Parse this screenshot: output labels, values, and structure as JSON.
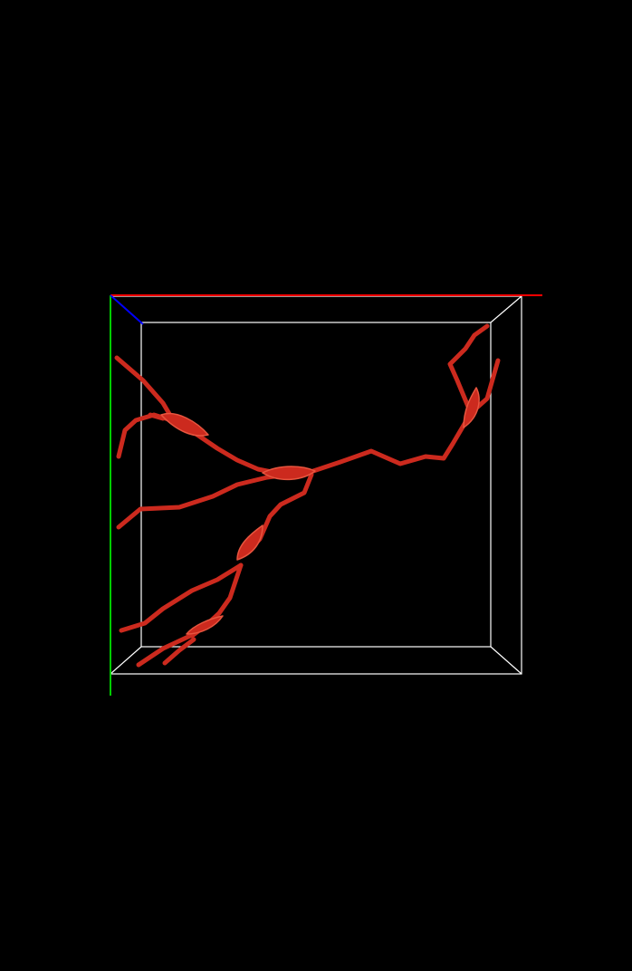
{
  "scene": {
    "background_color": "#000000",
    "bounding_box_color": "#ffffff",
    "structure_color": "#cc2a1e",
    "structure_highlight_color": "#e8553f",
    "axes": {
      "x_color": "#ff0000",
      "y_color": "#00cc00",
      "z_color": "#0000ff"
    }
  }
}
